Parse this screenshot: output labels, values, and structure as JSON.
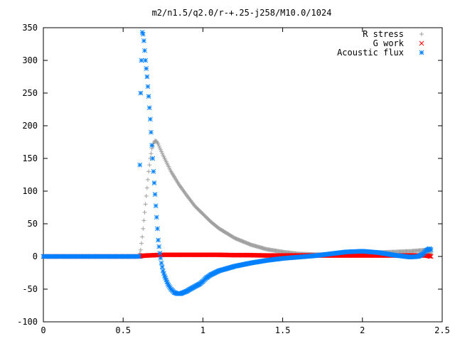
{
  "chart_data": {
    "type": "scatter",
    "title": "m2/n1.5/q2.0/r-+.25-j258/M10.0/1024",
    "xlabel": "",
    "ylabel": "",
    "xlim": [
      0,
      2.5
    ],
    "ylim": [
      -100,
      350
    ],
    "x_ticks": [
      0,
      0.5,
      1,
      1.5,
      2,
      2.5
    ],
    "x_tick_labels": [
      "0",
      "0.5",
      "1",
      "1.5",
      "2",
      "2.5"
    ],
    "y_ticks": [
      -100,
      -50,
      0,
      50,
      100,
      150,
      200,
      250,
      300,
      350
    ],
    "y_tick_labels": [
      "-100",
      "-50",
      "0",
      "50",
      "100",
      "150",
      "200",
      "250",
      "300",
      "350"
    ],
    "grid": false,
    "legend_position": "top-right",
    "series": [
      {
        "name": "R stress",
        "marker": "plus",
        "color": "#a0a0a0",
        "x": [
          0.0,
          0.2,
          0.4,
          0.6,
          0.61,
          0.62,
          0.63,
          0.64,
          0.65,
          0.66,
          0.67,
          0.68,
          0.69,
          0.7,
          0.71,
          0.72,
          0.73,
          0.75,
          0.78,
          0.8,
          0.85,
          0.9,
          0.95,
          1.0,
          1.05,
          1.1,
          1.2,
          1.3,
          1.4,
          1.5,
          1.6,
          1.7,
          1.8,
          1.9,
          2.0,
          2.1,
          2.2,
          2.3,
          2.4,
          2.43
        ],
        "y": [
          0,
          0,
          0,
          0,
          10,
          30,
          55,
          80,
          105,
          130,
          150,
          165,
          173,
          177,
          176,
          172,
          166,
          155,
          140,
          130,
          110,
          93,
          77,
          65,
          53,
          43,
          28,
          18,
          11,
          7,
          4,
          3,
          3,
          4,
          5,
          6,
          7,
          8,
          10,
          5
        ]
      },
      {
        "name": "G work",
        "marker": "cross",
        "color": "#ff0000",
        "x": [
          0.0,
          0.2,
          0.4,
          0.6,
          0.62,
          0.65,
          0.7,
          0.75,
          0.8,
          0.9,
          1.0,
          1.1,
          1.2,
          1.3,
          1.4,
          1.5,
          1.6,
          1.7,
          1.8,
          1.9,
          2.0,
          2.1,
          2.2,
          2.3,
          2.4,
          2.43
        ],
        "y": [
          0,
          0,
          0,
          0,
          1,
          1.5,
          2,
          2.5,
          2.5,
          2.5,
          2.5,
          2.5,
          2,
          2,
          1.5,
          1.5,
          1.5,
          1.5,
          1.5,
          1.5,
          1.5,
          1.5,
          1.5,
          1.5,
          1.5,
          0
        ]
      },
      {
        "name": "Acoustic flux",
        "marker": "asterisk",
        "color": "#0080ff",
        "x": [
          0.0,
          0.2,
          0.4,
          0.6,
          0.605,
          0.61,
          0.615,
          0.62,
          0.625,
          0.63,
          0.635,
          0.64,
          0.65,
          0.66,
          0.67,
          0.68,
          0.69,
          0.7,
          0.71,
          0.72,
          0.73,
          0.74,
          0.75,
          0.76,
          0.78,
          0.8,
          0.82,
          0.84,
          0.86,
          0.88,
          0.9,
          0.92,
          0.95,
          0.98,
          1.0,
          1.02,
          1.05,
          1.1,
          1.2,
          1.3,
          1.4,
          1.5,
          1.6,
          1.7,
          1.8,
          1.9,
          2.0,
          2.1,
          2.2,
          2.3,
          2.35,
          2.38,
          2.4,
          2.42,
          2.43
        ],
        "y": [
          0,
          0,
          0,
          0,
          140,
          250,
          300,
          343,
          340,
          330,
          315,
          300,
          275,
          245,
          210,
          170,
          130,
          95,
          60,
          25,
          5,
          -10,
          -22,
          -30,
          -42,
          -50,
          -55,
          -57,
          -57,
          -55,
          -53,
          -50,
          -46,
          -42,
          -38,
          -33,
          -28,
          -22,
          -15,
          -10,
          -6,
          -3,
          -1,
          1,
          4,
          7,
          8,
          6,
          2,
          -1,
          0,
          4,
          9,
          12,
          10
        ]
      }
    ]
  }
}
